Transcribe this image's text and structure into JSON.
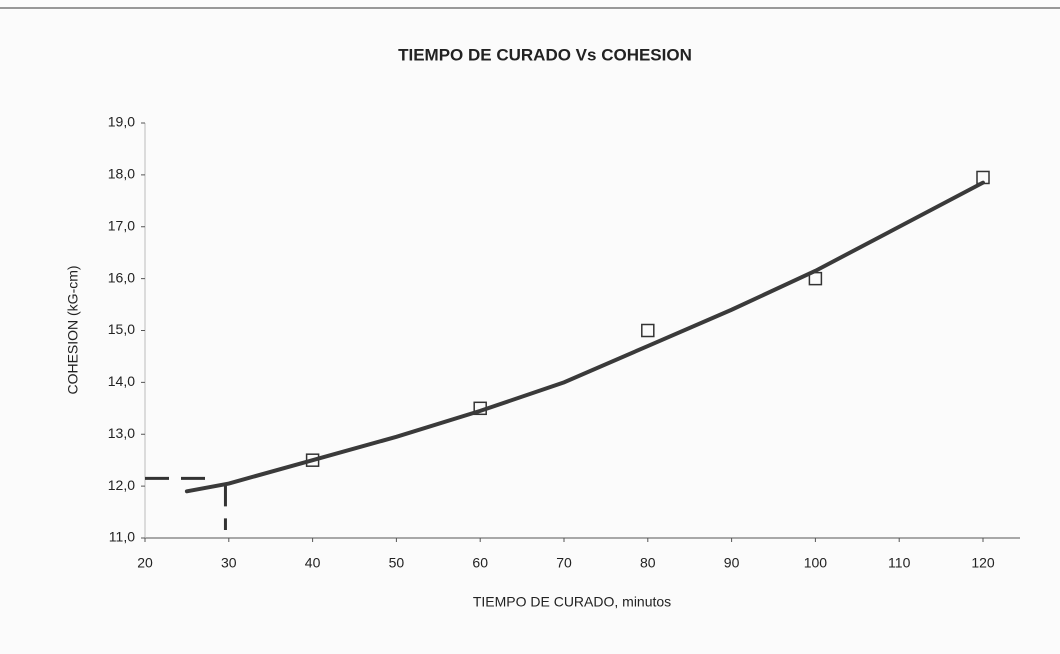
{
  "chart_data": {
    "type": "scatter",
    "title": "TIEMPO DE CURADO Vs COHESION",
    "xlabel": "TIEMPO DE CURADO, minutos",
    "ylabel": "COHESION (kG-cm)",
    "series": [
      {
        "type": "scatter",
        "color": "#333333",
        "x": [
          40,
          60,
          80,
          100,
          120
        ],
        "values": [
          12.5,
          13.5,
          15.0,
          16.0,
          17.95
        ]
      },
      {
        "type": "line",
        "color": "#3a3a3a",
        "x": [
          25,
          30,
          40,
          50,
          60,
          70,
          80,
          90,
          100,
          110,
          120
        ],
        "values": [
          11.9,
          12.05,
          12.5,
          12.95,
          13.45,
          14.0,
          14.7,
          15.4,
          16.15,
          17.0,
          17.85
        ]
      }
    ],
    "reference": {
      "x": 29.6,
      "y": 12.15
    },
    "xlim": [
      20,
      120
    ],
    "xticks": [
      20,
      30,
      40,
      50,
      60,
      70,
      80,
      90,
      100,
      110,
      120
    ],
    "ylim": [
      11,
      19
    ],
    "yticks": [
      {
        "value": 11,
        "label": "11,0"
      },
      {
        "value": 12,
        "label": "12,0"
      },
      {
        "value": 13,
        "label": "13,0"
      },
      {
        "value": 14,
        "label": "14,0"
      },
      {
        "value": 15,
        "label": "15,0"
      },
      {
        "value": 16,
        "label": "16,0"
      },
      {
        "value": 17,
        "label": "17,0"
      },
      {
        "value": 18,
        "label": "18,0"
      },
      {
        "value": 19,
        "label": "19,0"
      }
    ]
  }
}
